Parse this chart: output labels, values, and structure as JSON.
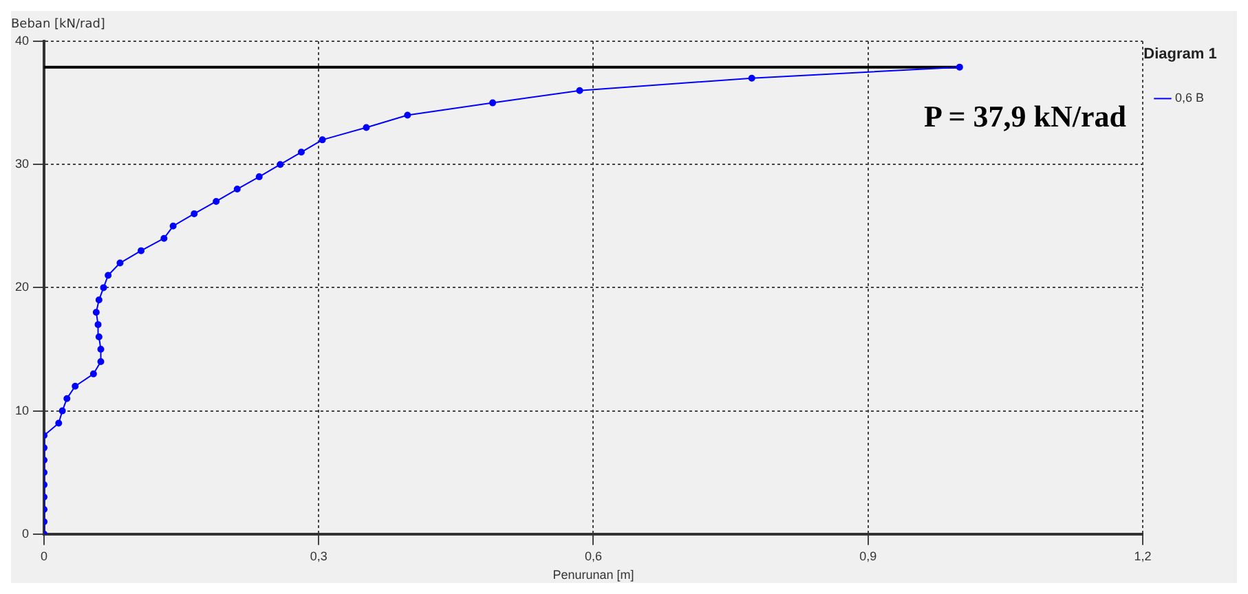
{
  "chart_data": {
    "type": "line",
    "xlabel": "Penurunan [m]",
    "ylabel": "Beban [kN/rad]",
    "legend_title": "Diagram 1",
    "annotations": [
      "P = 37,9 kN/rad"
    ],
    "xlim": [
      0,
      1.2
    ],
    "ylim": [
      0,
      40
    ],
    "xticks": [
      0,
      {
        "value": 0.3,
        "label": "0,3"
      },
      {
        "value": 0.6,
        "label": "0,6"
      },
      {
        "value": 0.9,
        "label": "0,9"
      },
      {
        "value": 1.2,
        "label": "1,2"
      }
    ],
    "yticks": [
      0,
      10,
      20,
      30,
      40
    ],
    "grid": true,
    "legend": "right",
    "marker": "circle",
    "line_style": "solid",
    "series": [
      {
        "name": "0,6 B",
        "color": "#0000ff",
        "x": [
          0,
          0,
          0,
          0,
          0,
          0,
          0,
          0,
          0,
          0.016,
          0.02,
          0.025,
          0.034,
          0.054,
          0.062,
          0.062,
          0.06,
          0.059,
          0.057,
          0.06,
          0.065,
          0.07,
          0.083,
          0.106,
          0.131,
          0.141,
          0.164,
          0.188,
          0.211,
          0.235,
          0.258,
          0.281,
          0.304,
          0.352,
          0.397,
          0.49,
          0.585,
          0.773,
          1.0
        ],
        "values": [
          0,
          1,
          2,
          3,
          4,
          5,
          6,
          7,
          8,
          9,
          10,
          11,
          12,
          13,
          14,
          15,
          16,
          17,
          18,
          19,
          20,
          21,
          22,
          23,
          24,
          25,
          26,
          27,
          28,
          29,
          30,
          31,
          32,
          33,
          34,
          35,
          36,
          37,
          37.9
        ]
      },
      {
        "type": "line",
        "color": "#000000",
        "x": [
          0,
          1.0
        ],
        "values": [
          37.9,
          37.9
        ],
        "marker": "none"
      }
    ]
  }
}
